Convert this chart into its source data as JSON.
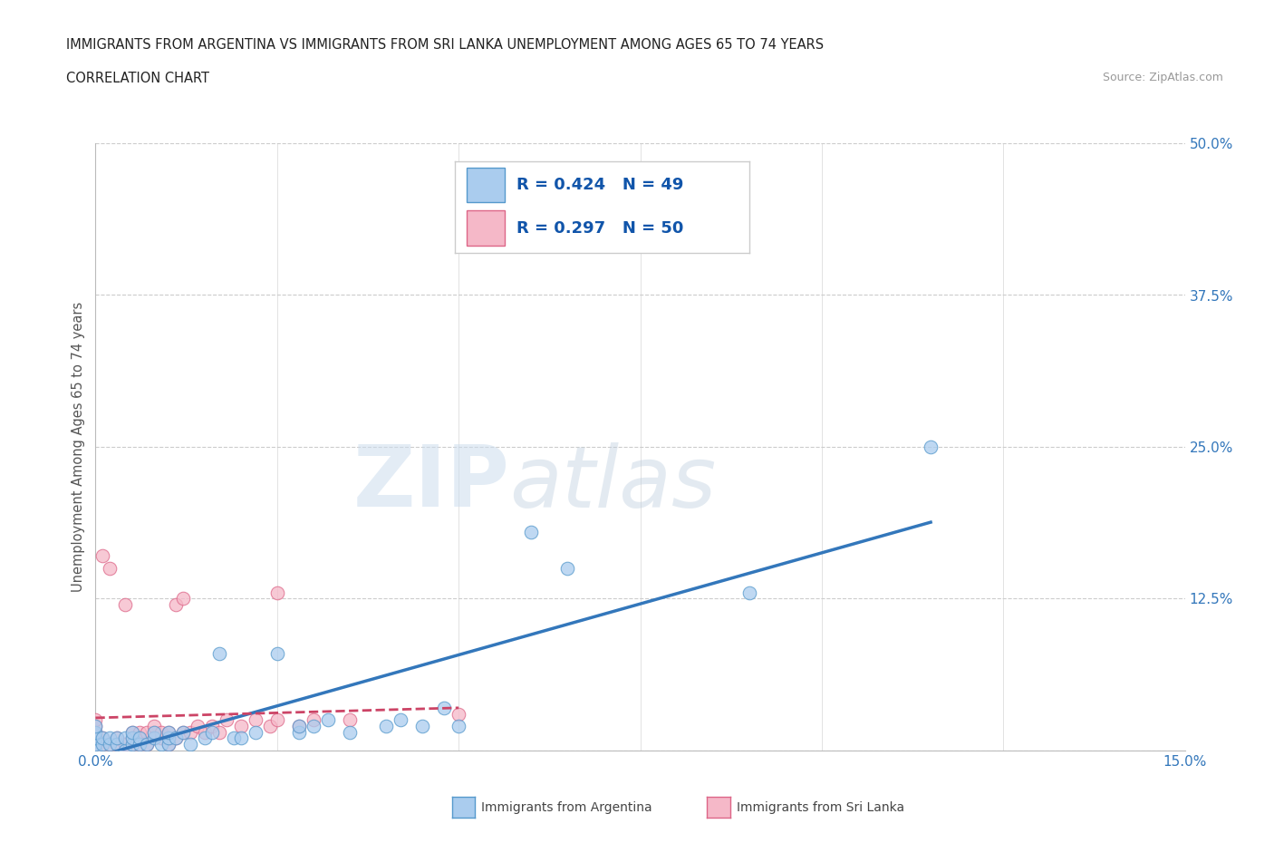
{
  "title_line1": "IMMIGRANTS FROM ARGENTINA VS IMMIGRANTS FROM SRI LANKA UNEMPLOYMENT AMONG AGES 65 TO 74 YEARS",
  "title_line2": "CORRELATION CHART",
  "source": "Source: ZipAtlas.com",
  "ylabel": "Unemployment Among Ages 65 to 74 years",
  "xlim": [
    0.0,
    0.15
  ],
  "ylim": [
    0.0,
    0.5
  ],
  "ytick_positions": [
    0.0,
    0.125,
    0.25,
    0.375,
    0.5
  ],
  "ytick_labels": [
    "",
    "12.5%",
    "25.0%",
    "37.5%",
    "50.0%"
  ],
  "xtick_positions": [
    0.0,
    0.025,
    0.05,
    0.075,
    0.1,
    0.125,
    0.15
  ],
  "xticklabels_show": [
    "0.0%",
    "",
    "",
    "",
    "",
    "",
    "15.0%"
  ],
  "argentina_R": 0.424,
  "argentina_N": 49,
  "srilanka_R": 0.297,
  "srilanka_N": 50,
  "argentina_color": "#aaccee",
  "argentina_edge_color": "#5599cc",
  "argentina_line_color": "#3377bb",
  "srilanka_color": "#f5b8c8",
  "srilanka_edge_color": "#dd6688",
  "srilanka_line_color": "#cc4466",
  "argentina_x": [
    0.0,
    0.0,
    0.0,
    0.0,
    0.0,
    0.001,
    0.001,
    0.002,
    0.002,
    0.003,
    0.003,
    0.004,
    0.004,
    0.005,
    0.005,
    0.005,
    0.006,
    0.006,
    0.007,
    0.008,
    0.008,
    0.009,
    0.01,
    0.01,
    0.01,
    0.011,
    0.012,
    0.013,
    0.015,
    0.016,
    0.017,
    0.019,
    0.02,
    0.022,
    0.025,
    0.028,
    0.028,
    0.03,
    0.032,
    0.035,
    0.04,
    0.042,
    0.045,
    0.048,
    0.05,
    0.06,
    0.065,
    0.09,
    0.115
  ],
  "argentina_y": [
    0.0,
    0.005,
    0.01,
    0.015,
    0.02,
    0.005,
    0.01,
    0.005,
    0.01,
    0.005,
    0.01,
    0.0,
    0.01,
    0.005,
    0.01,
    0.015,
    0.005,
    0.01,
    0.005,
    0.01,
    0.015,
    0.005,
    0.005,
    0.01,
    0.015,
    0.01,
    0.015,
    0.005,
    0.01,
    0.015,
    0.08,
    0.01,
    0.01,
    0.015,
    0.08,
    0.015,
    0.02,
    0.02,
    0.025,
    0.015,
    0.02,
    0.025,
    0.02,
    0.035,
    0.02,
    0.18,
    0.15,
    0.13,
    0.25
  ],
  "srilanka_x": [
    0.0,
    0.0,
    0.0,
    0.0,
    0.0,
    0.0,
    0.001,
    0.001,
    0.001,
    0.002,
    0.002,
    0.003,
    0.003,
    0.004,
    0.004,
    0.005,
    0.005,
    0.005,
    0.006,
    0.006,
    0.006,
    0.007,
    0.007,
    0.008,
    0.008,
    0.008,
    0.009,
    0.009,
    0.01,
    0.01,
    0.01,
    0.011,
    0.011,
    0.012,
    0.012,
    0.013,
    0.014,
    0.015,
    0.016,
    0.017,
    0.018,
    0.02,
    0.022,
    0.024,
    0.025,
    0.025,
    0.028,
    0.03,
    0.035,
    0.05
  ],
  "srilanka_y": [
    0.0,
    0.005,
    0.01,
    0.015,
    0.02,
    0.025,
    0.005,
    0.01,
    0.16,
    0.005,
    0.15,
    0.005,
    0.01,
    0.005,
    0.12,
    0.005,
    0.01,
    0.015,
    0.005,
    0.01,
    0.015,
    0.005,
    0.015,
    0.01,
    0.015,
    0.02,
    0.01,
    0.015,
    0.005,
    0.01,
    0.015,
    0.01,
    0.12,
    0.015,
    0.125,
    0.015,
    0.02,
    0.015,
    0.02,
    0.015,
    0.025,
    0.02,
    0.025,
    0.02,
    0.025,
    0.13,
    0.02,
    0.025,
    0.025,
    0.03
  ],
  "watermark_zip": "ZIP",
  "watermark_atlas": "atlas",
  "background_color": "#ffffff",
  "grid_color": "#cccccc",
  "legend_label1": "R = 0.424   N = 49",
  "legend_label2": "R = 0.297   N = 50",
  "bottom_legend1": "Immigrants from Argentina",
  "bottom_legend2": "Immigrants from Sri Lanka"
}
